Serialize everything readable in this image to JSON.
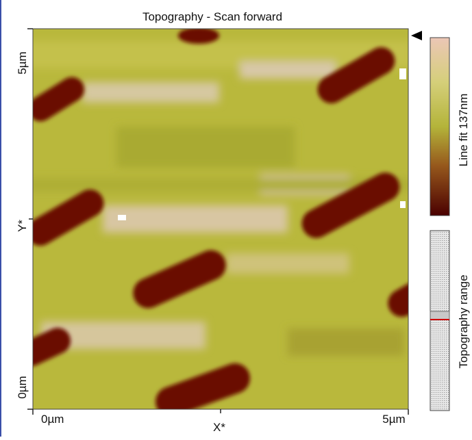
{
  "title": "Topography - Scan forward",
  "x_axis": {
    "label": "X*",
    "start": "0µm",
    "end": "5µm"
  },
  "y_axis": {
    "label": "Y*",
    "start": "0µm",
    "end": "5µm"
  },
  "colorbar": {
    "label": "Line fit 137nm"
  },
  "range_bar": {
    "label": "Topography range"
  }
}
